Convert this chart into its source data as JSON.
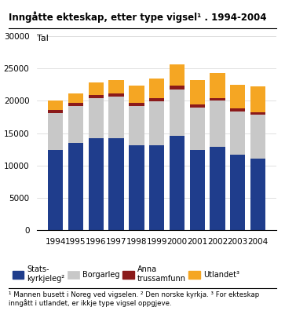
{
  "title": "Inngåtte ekteskap, etter type vigsel¹ . 1994-2004",
  "ylabel": "Tal",
  "years": [
    1994,
    1995,
    1996,
    1997,
    1998,
    1999,
    2000,
    2001,
    2002,
    2003,
    2004
  ],
  "statskyrkjeleg": [
    12400,
    13500,
    14200,
    14200,
    13100,
    13100,
    14600,
    12400,
    12900,
    11700,
    11100
  ],
  "borgarleg": [
    5700,
    5700,
    6200,
    6500,
    6100,
    6800,
    7200,
    6600,
    7100,
    6700,
    6800
  ],
  "anna_trussamfunn": [
    500,
    500,
    500,
    500,
    500,
    500,
    600,
    500,
    400,
    400,
    400
  ],
  "utlandet": [
    1500,
    1500,
    1900,
    2000,
    2700,
    3100,
    3200,
    3700,
    3900,
    3700,
    3900
  ],
  "colors": {
    "statskyrkjeleg": "#1f3d8c",
    "borgarleg": "#c8c8c8",
    "anna_trussamfunn": "#8b1a1a",
    "utlandet": "#f5a623"
  },
  "ylim": [
    0,
    30000
  ],
  "yticks": [
    0,
    5000,
    10000,
    15000,
    20000,
    25000,
    30000
  ],
  "legend_labels": [
    "Stats-\nkyrkjeleg²",
    "Borgarleg",
    "Anna\ntrussamfunn",
    "Utlandet³"
  ],
  "footnote": "¹ Mannen busett i Noreg ved vigselen. ² Den norske kyrkja. ³ For ekteskap\ninngått i utlandet, er ikkje type vigsel oppgjeve."
}
